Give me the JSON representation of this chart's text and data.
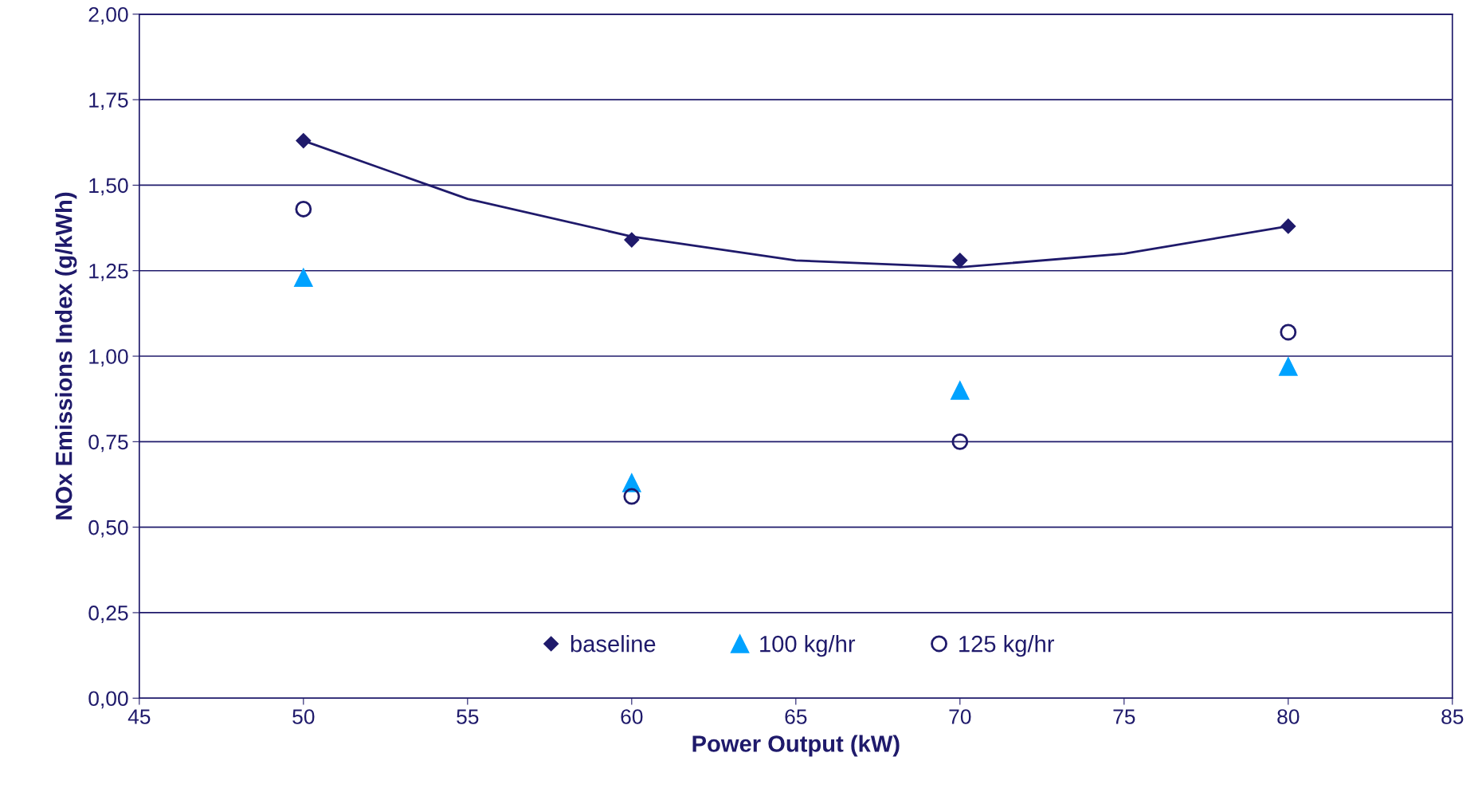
{
  "chart_data": {
    "type": "scatter",
    "xlabel": "Power Output (kW)",
    "ylabel": "NOx Emissions Index (g/kWh)",
    "x": [
      50,
      60,
      70,
      80
    ],
    "series": [
      {
        "name": "baseline",
        "color": "#1f1a6b",
        "marker": "diamond",
        "values": [
          1.63,
          1.34,
          1.28,
          1.38
        ]
      },
      {
        "name": "100 kg/hr",
        "color": "#00a2ff",
        "marker": "triangle",
        "values": [
          1.23,
          0.63,
          0.9,
          0.97
        ]
      },
      {
        "name": "125 kg/hr",
        "color": "#1f1a6b",
        "marker": "circle",
        "values": [
          1.43,
          0.59,
          0.75,
          1.07
        ]
      },
      {
        "type": "line",
        "color": "#1f1a6b",
        "marker": "none",
        "line_style": "solid",
        "x": [
          50,
          55,
          60,
          65,
          70,
          75,
          80
        ],
        "values": [
          1.63,
          1.46,
          1.35,
          1.28,
          1.26,
          1.3,
          1.38
        ]
      }
    ],
    "xlim": [
      45,
      85
    ],
    "xticks": [
      45,
      50,
      55,
      60,
      65,
      70,
      75,
      80,
      85
    ],
    "ylim": [
      0,
      2
    ],
    "yticks": [
      {
        "value": 0,
        "label": "0,00"
      },
      {
        "value": 0.25,
        "label": "0,25"
      },
      {
        "value": 0.5,
        "label": "0,50"
      },
      {
        "value": 0.75,
        "label": "0,75"
      },
      {
        "value": 1,
        "label": "1,00"
      },
      {
        "value": 1.25,
        "label": "1,25"
      },
      {
        "value": 1.5,
        "label": "1,50"
      },
      {
        "value": 1.75,
        "label": "1,75"
      },
      {
        "value": 2,
        "label": "2,00"
      }
    ],
    "grid": "y",
    "legend": "bottom"
  }
}
